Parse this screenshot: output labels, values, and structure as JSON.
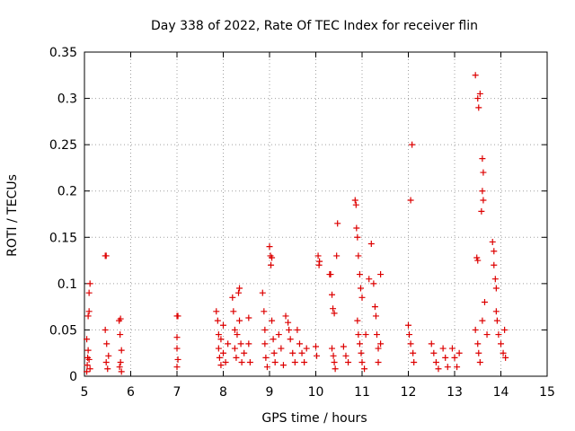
{
  "chart_data": {
    "type": "scatter",
    "title": "Day 338 of 2022, Rate Of TEC Index for receiver flin",
    "xlabel": "GPS time / hours",
    "ylabel": "ROTI / TECUs",
    "xlim": [
      5,
      15
    ],
    "ylim": [
      0,
      0.35
    ],
    "xticks": [
      "5",
      "6",
      "7",
      "8",
      "9",
      "10",
      "11",
      "12",
      "13",
      "14",
      "15"
    ],
    "yticks": [
      "0",
      "0.05",
      "0.1",
      "0.15",
      "0.2",
      "0.25",
      "0.3",
      "0.35"
    ],
    "grid": true,
    "marker": "+",
    "color": "#dd0000",
    "series": [
      {
        "name": "ROTI",
        "points": [
          [
            5.05,
            0.005
          ],
          [
            5.06,
            0.012
          ],
          [
            5.07,
            0.02
          ],
          [
            5.08,
            0.028
          ],
          [
            5.05,
            0.04
          ],
          [
            5.08,
            0.065
          ],
          [
            5.1,
            0.07
          ],
          [
            5.1,
            0.09
          ],
          [
            5.12,
            0.1
          ],
          [
            5.12,
            0.008
          ],
          [
            5.1,
            0.018
          ],
          [
            5.45,
            0.13
          ],
          [
            5.47,
            0.13
          ],
          [
            5.45,
            0.05
          ],
          [
            5.48,
            0.035
          ],
          [
            5.47,
            0.015
          ],
          [
            5.5,
            0.008
          ],
          [
            5.52,
            0.022
          ],
          [
            5.75,
            0.06
          ],
          [
            5.78,
            0.062
          ],
          [
            5.77,
            0.045
          ],
          [
            5.8,
            0.028
          ],
          [
            5.78,
            0.015
          ],
          [
            5.8,
            0.005
          ],
          [
            5.76,
            0.01
          ],
          [
            7.0,
            0.065
          ],
          [
            7.02,
            0.065
          ],
          [
            7.0,
            0.042
          ],
          [
            7.0,
            0.03
          ],
          [
            7.02,
            0.018
          ],
          [
            7.0,
            0.01
          ],
          [
            7.85,
            0.07
          ],
          [
            7.88,
            0.06
          ],
          [
            7.9,
            0.045
          ],
          [
            7.9,
            0.03
          ],
          [
            7.92,
            0.02
          ],
          [
            7.95,
            0.012
          ],
          [
            7.95,
            0.04
          ],
          [
            8.0,
            0.055
          ],
          [
            8.0,
            0.025
          ],
          [
            8.05,
            0.015
          ],
          [
            8.1,
            0.035
          ],
          [
            8.2,
            0.085
          ],
          [
            8.22,
            0.07
          ],
          [
            8.25,
            0.05
          ],
          [
            8.25,
            0.03
          ],
          [
            8.28,
            0.02
          ],
          [
            8.3,
            0.045
          ],
          [
            8.33,
            0.09
          ],
          [
            8.35,
            0.095
          ],
          [
            8.35,
            0.06
          ],
          [
            8.38,
            0.035
          ],
          [
            8.4,
            0.015
          ],
          [
            8.45,
            0.025
          ],
          [
            8.55,
            0.063
          ],
          [
            8.55,
            0.035
          ],
          [
            8.58,
            0.015
          ],
          [
            8.85,
            0.09
          ],
          [
            8.88,
            0.07
          ],
          [
            8.9,
            0.05
          ],
          [
            8.9,
            0.035
          ],
          [
            8.92,
            0.02
          ],
          [
            8.95,
            0.01
          ],
          [
            9.0,
            0.14
          ],
          [
            9.02,
            0.13
          ],
          [
            9.03,
            0.12
          ],
          [
            9.05,
            0.128
          ],
          [
            9.05,
            0.06
          ],
          [
            9.08,
            0.04
          ],
          [
            9.1,
            0.025
          ],
          [
            9.12,
            0.015
          ],
          [
            9.2,
            0.045
          ],
          [
            9.25,
            0.03
          ],
          [
            9.3,
            0.012
          ],
          [
            9.35,
            0.065
          ],
          [
            9.4,
            0.058
          ],
          [
            9.42,
            0.05
          ],
          [
            9.45,
            0.04
          ],
          [
            9.5,
            0.025
          ],
          [
            9.55,
            0.015
          ],
          [
            9.6,
            0.05
          ],
          [
            9.65,
            0.035
          ],
          [
            9.7,
            0.025
          ],
          [
            9.75,
            0.015
          ],
          [
            9.8,
            0.03
          ],
          [
            10.0,
            0.032
          ],
          [
            10.02,
            0.022
          ],
          [
            10.05,
            0.13
          ],
          [
            10.07,
            0.12
          ],
          [
            10.08,
            0.124
          ],
          [
            10.3,
            0.11
          ],
          [
            10.32,
            0.11
          ],
          [
            10.35,
            0.088
          ],
          [
            10.37,
            0.073
          ],
          [
            10.4,
            0.068
          ],
          [
            10.45,
            0.13
          ],
          [
            10.47,
            0.165
          ],
          [
            10.35,
            0.03
          ],
          [
            10.38,
            0.022
          ],
          [
            10.4,
            0.015
          ],
          [
            10.42,
            0.008
          ],
          [
            10.6,
            0.032
          ],
          [
            10.65,
            0.022
          ],
          [
            10.7,
            0.015
          ],
          [
            10.85,
            0.19
          ],
          [
            10.87,
            0.185
          ],
          [
            10.88,
            0.16
          ],
          [
            10.9,
            0.15
          ],
          [
            10.92,
            0.13
          ],
          [
            10.95,
            0.11
          ],
          [
            10.97,
            0.095
          ],
          [
            11.0,
            0.085
          ],
          [
            10.9,
            0.06
          ],
          [
            10.92,
            0.045
          ],
          [
            10.95,
            0.035
          ],
          [
            10.98,
            0.025
          ],
          [
            11.0,
            0.015
          ],
          [
            11.05,
            0.008
          ],
          [
            11.08,
            0.045
          ],
          [
            11.15,
            0.105
          ],
          [
            11.2,
            0.143
          ],
          [
            11.25,
            0.1
          ],
          [
            11.28,
            0.075
          ],
          [
            11.3,
            0.065
          ],
          [
            11.32,
            0.045
          ],
          [
            11.35,
            0.03
          ],
          [
            11.35,
            0.015
          ],
          [
            11.4,
            0.11
          ],
          [
            11.4,
            0.035
          ],
          [
            12.0,
            0.055
          ],
          [
            12.02,
            0.045
          ],
          [
            12.05,
            0.035
          ],
          [
            12.08,
            0.25
          ],
          [
            12.1,
            0.025
          ],
          [
            12.12,
            0.015
          ],
          [
            12.05,
            0.19
          ],
          [
            12.5,
            0.035
          ],
          [
            12.55,
            0.025
          ],
          [
            12.6,
            0.015
          ],
          [
            12.65,
            0.008
          ],
          [
            12.75,
            0.03
          ],
          [
            12.8,
            0.02
          ],
          [
            12.85,
            0.01
          ],
          [
            12.95,
            0.03
          ],
          [
            13.0,
            0.02
          ],
          [
            13.05,
            0.01
          ],
          [
            13.1,
            0.025
          ],
          [
            13.45,
            0.325
          ],
          [
            13.5,
            0.3
          ],
          [
            13.52,
            0.29
          ],
          [
            13.55,
            0.305
          ],
          [
            13.6,
            0.235
          ],
          [
            13.62,
            0.22
          ],
          [
            13.6,
            0.2
          ],
          [
            13.62,
            0.19
          ],
          [
            13.58,
            0.178
          ],
          [
            13.5,
            0.125
          ],
          [
            13.48,
            0.128
          ],
          [
            13.45,
            0.05
          ],
          [
            13.5,
            0.035
          ],
          [
            13.52,
            0.025
          ],
          [
            13.55,
            0.015
          ],
          [
            13.6,
            0.06
          ],
          [
            13.65,
            0.08
          ],
          [
            13.7,
            0.045
          ],
          [
            13.82,
            0.145
          ],
          [
            13.85,
            0.135
          ],
          [
            13.85,
            0.12
          ],
          [
            13.88,
            0.105
          ],
          [
            13.9,
            0.095
          ],
          [
            13.9,
            0.07
          ],
          [
            13.92,
            0.06
          ],
          [
            13.95,
            0.045
          ],
          [
            14.0,
            0.035
          ],
          [
            14.05,
            0.025
          ],
          [
            14.08,
            0.05
          ],
          [
            14.1,
            0.02
          ]
        ]
      }
    ]
  }
}
